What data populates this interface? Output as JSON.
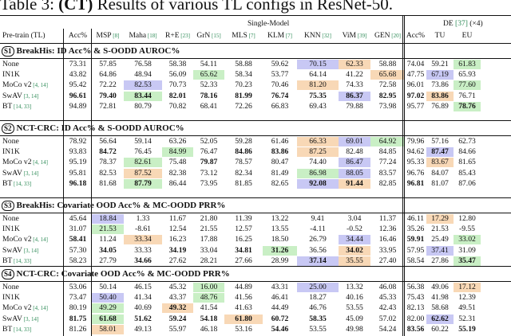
{
  "caption": {
    "prefix": "Table 3: ",
    "bold": "(CT)",
    "rest": " Results of various TL configs in ResNet-50."
  },
  "header": {
    "single_model": "Single-Model",
    "de": "DE",
    "de_cite": "[37]",
    "de_times": "(×4)",
    "pretrain": "Pre-train (TL)",
    "columns": [
      {
        "label": "Acc%",
        "cite": ""
      },
      {
        "label": "MSP",
        "cite": "[8]"
      },
      {
        "label": "Maha",
        "cite": "[18]"
      },
      {
        "label": "R+E",
        "cite": "[23]"
      },
      {
        "label": "GrN",
        "cite": "[15]"
      },
      {
        "label": "MLS",
        "cite": "[7]"
      },
      {
        "label": "KLM",
        "cite": "[7]"
      },
      {
        "label": "KNN",
        "cite": "[32]"
      },
      {
        "label": "ViM",
        "cite": "[39]"
      },
      {
        "label": "GEN",
        "cite": "[20]"
      },
      {
        "label": "Acc%",
        "cite": ""
      },
      {
        "label": "TU",
        "cite": ""
      },
      {
        "label": "EU",
        "cite": ""
      }
    ]
  },
  "sections": [
    {
      "badge": "S1",
      "title": "BreakHis: ID Acc% & S-OODD AUROC%",
      "rows": [
        {
          "name": "None",
          "cite": "",
          "values": [
            "73.31",
            "57.85",
            "76.58",
            "58.38",
            "54.11",
            "58.88",
            "59.62",
            "70.15",
            "62.33",
            "58.88",
            "74.04",
            "59.21",
            "61.83"
          ],
          "bold": [],
          "colors": {
            "7": "blue",
            "8": "orange",
            "12": "green"
          }
        },
        {
          "name": "IN1K",
          "cite": "",
          "values": [
            "43.82",
            "64.86",
            "48.94",
            "56.09",
            "65.62",
            "58.34",
            "53.77",
            "64.14",
            "41.22",
            "65.68",
            "47.75",
            "67.19",
            "65.93"
          ],
          "bold": [],
          "colors": {
            "4": "green",
            "9": "orange",
            "11": "blue"
          }
        },
        {
          "name": "MoCo v2",
          "cite": "[4, 14]",
          "values": [
            "95.42",
            "72.22",
            "82.53",
            "70.73",
            "52.33",
            "70.23",
            "70.46",
            "81.20",
            "74.33",
            "72.58",
            "96.01",
            "73.86",
            "77.60"
          ],
          "bold": [],
          "colors": {
            "2": "blue",
            "7": "orange",
            "12": "green"
          }
        },
        {
          "name": "SwAV",
          "cite": "[3, 14]",
          "values": [
            "96.61",
            "79.40",
            "83.44",
            "82.01",
            "78.16",
            "81.99",
            "76.74",
            "75.35",
            "86.37",
            "82.95",
            "97.02",
            "83.86",
            "76.71"
          ],
          "bold": [
            0,
            1,
            2,
            3,
            4,
            5,
            6,
            7,
            8,
            9,
            10,
            11
          ],
          "colors": {
            "2": "green",
            "8": "blue",
            "11": "orange"
          }
        },
        {
          "name": "BT",
          "cite": "[14, 33]",
          "values": [
            "94.89",
            "72.81",
            "80.79",
            "70.82",
            "68.41",
            "72.26",
            "66.83",
            "69.43",
            "79.88",
            "73.98",
            "95.77",
            "76.89",
            "78.76"
          ],
          "bold": [
            12
          ],
          "colors": {
            "12": "green"
          }
        }
      ]
    },
    {
      "badge": "S2",
      "title": "NCT-CRC: ID Acc% & S-OODD AUROC%",
      "rows": [
        {
          "name": "None",
          "cite": "",
          "values": [
            "78.92",
            "56.64",
            "59.14",
            "63.26",
            "52.05",
            "59.28",
            "61.46",
            "66.33",
            "69.01",
            "64.92",
            "79.96",
            "57.16",
            "62.73"
          ],
          "bold": [],
          "colors": {
            "7": "orange",
            "8": "blue",
            "9": "green"
          }
        },
        {
          "name": "IN1K",
          "cite": "",
          "values": [
            "93.83",
            "84.72",
            "76.45",
            "84.99",
            "76.47",
            "84.86",
            "83.86",
            "87.25",
            "82.48",
            "84.85",
            "94.62",
            "87.47",
            "84.66"
          ],
          "bold": [
            1,
            5,
            6,
            11
          ],
          "colors": {
            "3": "green",
            "7": "orange",
            "11": "blue"
          }
        },
        {
          "name": "MoCo v2",
          "cite": "[4, 14]",
          "values": [
            "95.19",
            "78.37",
            "82.61",
            "75.48",
            "79.87",
            "78.57",
            "80.47",
            "74.40",
            "86.47",
            "77.24",
            "95.33",
            "83.67",
            "81.65"
          ],
          "bold": [
            4
          ],
          "colors": {
            "2": "green",
            "8": "blue",
            "11": "orange"
          }
        },
        {
          "name": "SwAV",
          "cite": "[3, 14]",
          "values": [
            "95.81",
            "82.53",
            "87.52",
            "82.38",
            "73.12",
            "82.34",
            "81.49",
            "86.98",
            "88.05",
            "83.57",
            "96.76",
            "84.07",
            "85.43"
          ],
          "bold": [],
          "colors": {
            "2": "orange",
            "7": "green",
            "8": "blue"
          }
        },
        {
          "name": "BT",
          "cite": "[14, 33]",
          "values": [
            "96.18",
            "81.68",
            "87.79",
            "86.44",
            "73.95",
            "81.85",
            "82.65",
            "92.08",
            "91.44",
            "82.85",
            "96.81",
            "81.07",
            "87.06"
          ],
          "bold": [
            0,
            2,
            7,
            8,
            10
          ],
          "colors": {
            "2": "green",
            "7": "blue",
            "8": "orange"
          }
        }
      ]
    },
    {
      "badge": "S3",
      "title": "BreakHis: Covariate OOD Acc% & MC-OODD PRR%",
      "rows": [
        {
          "name": "None",
          "cite": "",
          "values": [
            "45.64",
            "18.84",
            "1.33",
            "11.67",
            "21.80",
            "11.39",
            "13.22",
            "9.41",
            "3.04",
            "11.37",
            "46.11",
            "17.29",
            "12.80"
          ],
          "bold": [],
          "colors": {
            "1": "blue",
            "11": "orange"
          }
        },
        {
          "name": "IN1K",
          "cite": "",
          "values": [
            "31.07",
            "21.53",
            "-8.61",
            "12.54",
            "21.55",
            "12.57",
            "13.55",
            "-4.11",
            "-0.52",
            "12.36",
            "35.26",
            "21.53",
            "-9.55"
          ],
          "bold": [],
          "colors": {
            "1": "green"
          }
        },
        {
          "name": "MoCo v2",
          "cite": "[4, 14]",
          "values": [
            "58.41",
            "11.24",
            "33.34",
            "16.23",
            "17.88",
            "16.25",
            "18.50",
            "26.79",
            "34.44",
            "16.46",
            "59.91",
            "25.49",
            "33.02"
          ],
          "bold": [
            0,
            10
          ],
          "colors": {
            "2": "orange",
            "8": "blue",
            "12": "green"
          }
        },
        {
          "name": "SwAV",
          "cite": "[3, 14]",
          "values": [
            "57.30",
            "34.05",
            "33.33",
            "34.19",
            "33.04",
            "34.81",
            "31.26",
            "36.56",
            "34.02",
            "33.95",
            "57.95",
            "37.41",
            "31.09"
          ],
          "bold": [
            1,
            3,
            5,
            6,
            8
          ],
          "colors": {
            "6": "green",
            "8": "orange",
            "11": "blue"
          }
        },
        {
          "name": "BT",
          "cite": "[14, 33]",
          "values": [
            "58.23",
            "27.79",
            "34.66",
            "27.62",
            "28.21",
            "27.66",
            "28.99",
            "37.14",
            "35.55",
            "27.40",
            "58.54",
            "27.86",
            "35.47"
          ],
          "bold": [
            2,
            7,
            12
          ],
          "colors": {
            "7": "blue",
            "8": "orange",
            "12": "green"
          }
        }
      ]
    },
    {
      "badge": "S4",
      "title": "NCT-CRC: Covariate OOD Acc% & MC-OODD PRR%",
      "rows": [
        {
          "name": "None",
          "cite": "",
          "values": [
            "53.06",
            "50.14",
            "46.15",
            "45.32",
            "16.00",
            "44.89",
            "43.31",
            "25.00",
            "13.32",
            "46.08",
            "56.38",
            "49.06",
            "17.12"
          ],
          "bold": [],
          "colors": {
            "4": "green",
            "7": "blue",
            "12": "orange"
          }
        },
        {
          "name": "IN1K",
          "cite": "",
          "values": [
            "73.47",
            "50.40",
            "41.34",
            "43.37",
            "48.76",
            "41.56",
            "46.41",
            "18.27",
            "40.16",
            "45.33",
            "75.43",
            "41.98",
            "12.39"
          ],
          "bold": [],
          "colors": {
            "1": "blue",
            "4": "green"
          }
        },
        {
          "name": "MoCo v2",
          "cite": "[4, 14]",
          "values": [
            "80.19",
            "49.29",
            "40.69",
            "49.32",
            "41.54",
            "41.63",
            "44.49",
            "46.76",
            "53.55",
            "42.43",
            "82.13",
            "58.68",
            "49.51"
          ],
          "bold": [
            3
          ],
          "colors": {
            "1": "green",
            "3": "orange"
          }
        },
        {
          "name": "SwAV",
          "cite": "[3, 14]",
          "values": [
            "81.75",
            "61.68",
            "51.62",
            "59.24",
            "54.18",
            "61.80",
            "60.72",
            "58.35",
            "45.09",
            "57.02",
            "82.00",
            "62.62",
            "52.31"
          ],
          "bold": [
            0,
            1,
            2,
            3,
            4,
            5,
            6,
            7,
            11
          ],
          "colors": {
            "1": "green",
            "5": "orange",
            "11": "blue"
          }
        },
        {
          "name": "BT",
          "cite": "[14, 33]",
          "values": [
            "81.26",
            "58.01",
            "49.13",
            "55.97",
            "46.18",
            "53.16",
            "54.46",
            "53.55",
            "49.98",
            "54.24",
            "83.56",
            "60.22",
            "55.19"
          ],
          "bold": [
            6,
            10,
            12
          ],
          "colors": {
            "1": "orange"
          }
        }
      ]
    }
  ]
}
